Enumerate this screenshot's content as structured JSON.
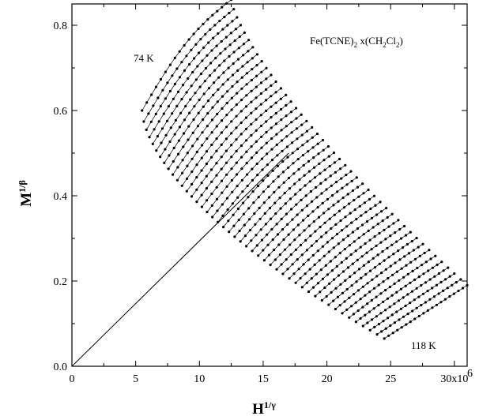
{
  "chart_data": {
    "type": "scatter",
    "xlabel": "H^{1/γ}",
    "ylabel": "M^{1/β}",
    "xlim": [
      0,
      31000000
    ],
    "ylim": [
      0,
      0.85
    ],
    "x_ticks": [
      0,
      5,
      10,
      15,
      20,
      25,
      30
    ],
    "x_tick_labels": [
      "0",
      "5",
      "10",
      "15",
      "20",
      "25",
      "30x10"
    ],
    "x_exponent": "6",
    "y_ticks": [
      0.0,
      0.2,
      0.4,
      0.6,
      0.8
    ],
    "y_tick_labels": [
      "0.0",
      "0.2",
      "0.4",
      "0.6",
      "0.8"
    ],
    "grid": false,
    "legend": "none",
    "annotations": {
      "compound": {
        "text_parts": [
          "Fe(TCNE)",
          "2",
          " x(CH",
          "2",
          "Cl",
          "2",
          ")"
        ]
      },
      "low_temp": "74 K",
      "high_temp": "118 K"
    },
    "isotherm_count": 45,
    "first_isotherm": {
      "temperature": "74 K",
      "start": [
        5500000,
        0.6
      ],
      "end": [
        12500000,
        0.86
      ]
    },
    "last_isotherm": {
      "temperature": "118 K",
      "start": [
        24500000,
        0.065
      ],
      "end": [
        31000000,
        0.19
      ]
    },
    "reference_line": {
      "from": [
        0,
        0
      ],
      "to": [
        17000000,
        0.5
      ]
    },
    "series_color": "#000000"
  }
}
